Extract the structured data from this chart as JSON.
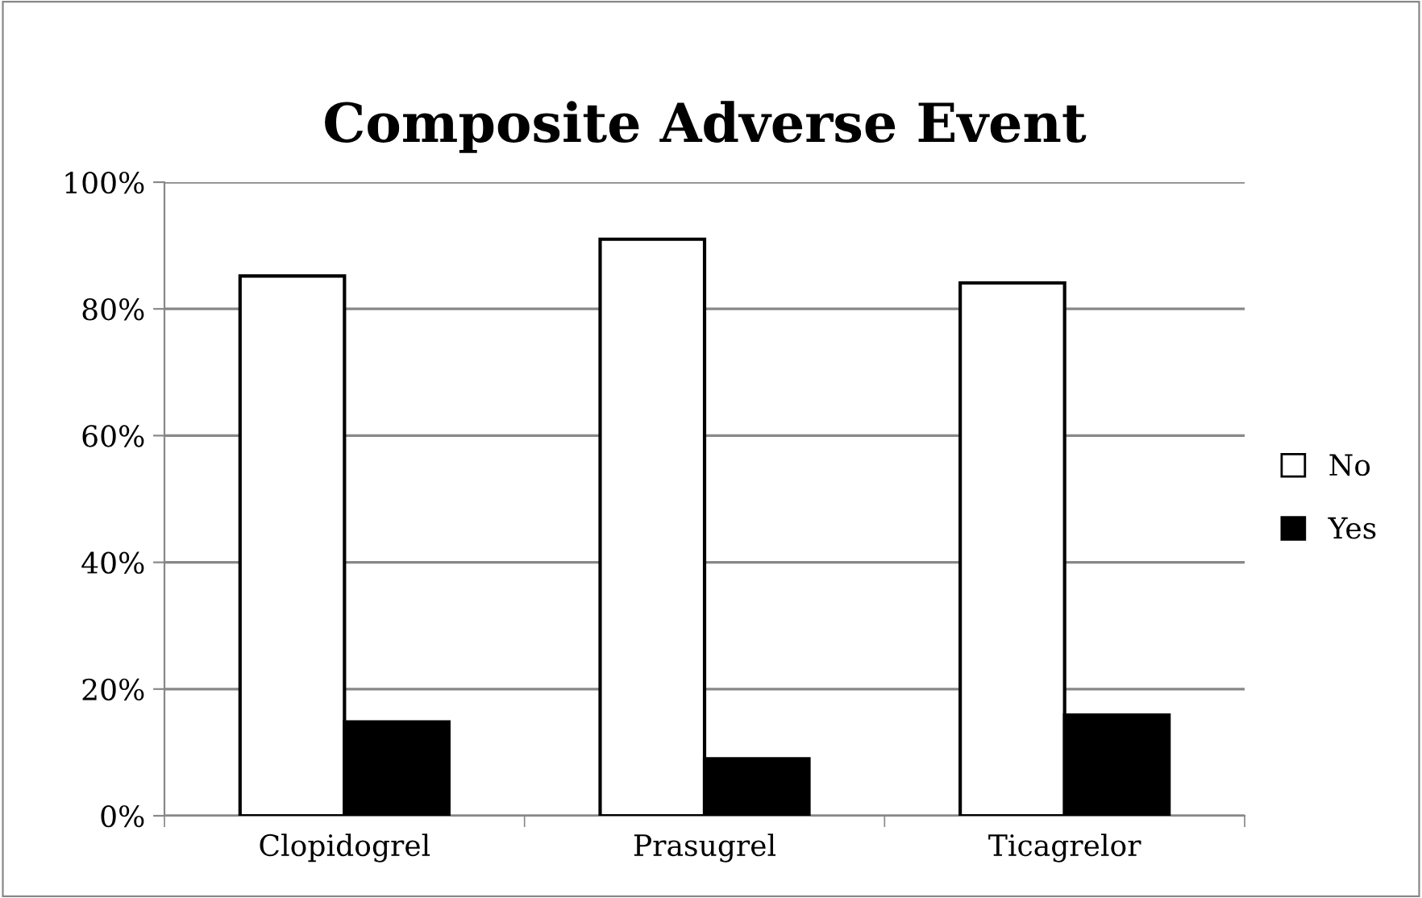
{
  "chart_data": {
    "type": "bar",
    "title": "Composite Adverse Event",
    "categories": [
      "Clopidogrel",
      "Prasugrel",
      "Ticagrelor"
    ],
    "series": [
      {
        "name": "No",
        "color": "#ffffff",
        "values": [
          85.2,
          91.0,
          84.1
        ]
      },
      {
        "name": "Yes",
        "color": "#000000",
        "values": [
          14.8,
          9.0,
          15.9
        ]
      }
    ],
    "ylim": [
      0,
      100
    ],
    "yticks": [
      {
        "value": 0,
        "label": "0%"
      },
      {
        "value": 20,
        "label": "20%"
      },
      {
        "value": 40,
        "label": "40%"
      },
      {
        "value": 60,
        "label": "60%"
      },
      {
        "value": 80,
        "label": "80%"
      },
      {
        "value": 100,
        "label": "100%"
      }
    ],
    "grid": "y",
    "legend": "right"
  }
}
